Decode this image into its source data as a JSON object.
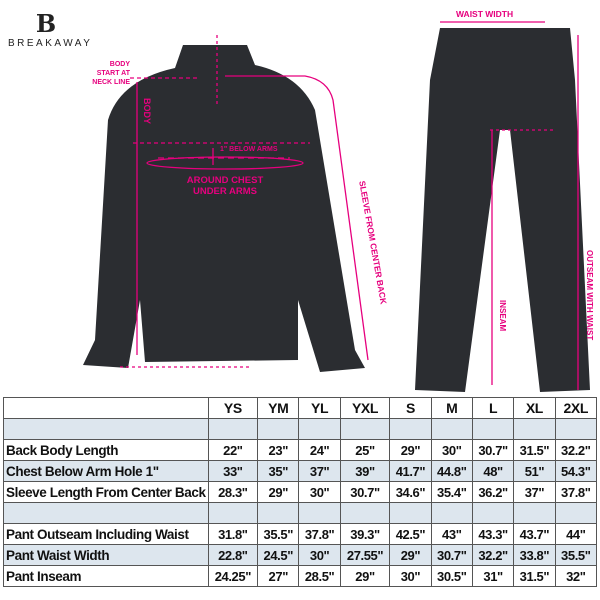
{
  "brand": {
    "logo_letter": "B",
    "name": "BREAKAWAY"
  },
  "colors": {
    "annotation": "#e6007e",
    "garment": "#2b2d31",
    "table_shade": "#dde6ee"
  },
  "annotations": {
    "body_start": [
      "BODY",
      "START AT",
      "NECK LINE"
    ],
    "body": "BODY",
    "below_arms": "1\" BELOW ARMS",
    "chest": [
      "AROUND CHEST",
      "UNDER ARMS"
    ],
    "sleeve": "SLEEVE FROM CENTER BACK",
    "waist": "WAIST WIDTH",
    "inseam": "INSEAM",
    "outseam": "OUTSEAM WITH WAIST"
  },
  "table": {
    "sizes": [
      "YS",
      "YM",
      "YL",
      "YXL",
      "S",
      "M",
      "L",
      "XL",
      "2XL"
    ],
    "rows": [
      {
        "label": "",
        "values": [
          "",
          "",
          "",
          "",
          "",
          "",
          "",
          "",
          ""
        ],
        "shade": true
      },
      {
        "label": "Back Body Length",
        "values": [
          "22\"",
          "23\"",
          "24\"",
          "25\"",
          "29\"",
          "30\"",
          "30.7\"",
          "31.5\"",
          "32.2\""
        ],
        "shade": false
      },
      {
        "label": "Chest Below Arm Hole 1\"",
        "values": [
          "33\"",
          "35\"",
          "37\"",
          "39\"",
          "41.7\"",
          "44.8\"",
          "48\"",
          "51\"",
          "54.3\""
        ],
        "shade": true
      },
      {
        "label": "Sleeve Length From Center Back",
        "values": [
          "28.3\"",
          "29\"",
          "30\"",
          "30.7\"",
          "34.6\"",
          "35.4\"",
          "36.2\"",
          "37\"",
          "37.8\""
        ],
        "shade": false
      },
      {
        "label": "",
        "values": [
          "",
          "",
          "",
          "",
          "",
          "",
          "",
          "",
          ""
        ],
        "shade": true
      },
      {
        "label": "Pant Outseam Including Waist",
        "values": [
          "31.8\"",
          "35.5\"",
          "37.8\"",
          "39.3\"",
          "42.5\"",
          "43\"",
          "43.3\"",
          "43.7\"",
          "44\""
        ],
        "shade": false
      },
      {
        "label": "Pant Waist Width",
        "values": [
          "22.8\"",
          "24.5\"",
          "30\"",
          "27.55\"",
          "29\"",
          "30.7\"",
          "32.2\"",
          "33.8\"",
          "35.5\""
        ],
        "shade": true
      },
      {
        "label": "Pant Inseam",
        "values": [
          "24.25\"",
          "27\"",
          "28.5\"",
          "29\"",
          "30\"",
          "30.5\"",
          "31\"",
          "31.5\"",
          "32\""
        ],
        "shade": false
      }
    ]
  }
}
